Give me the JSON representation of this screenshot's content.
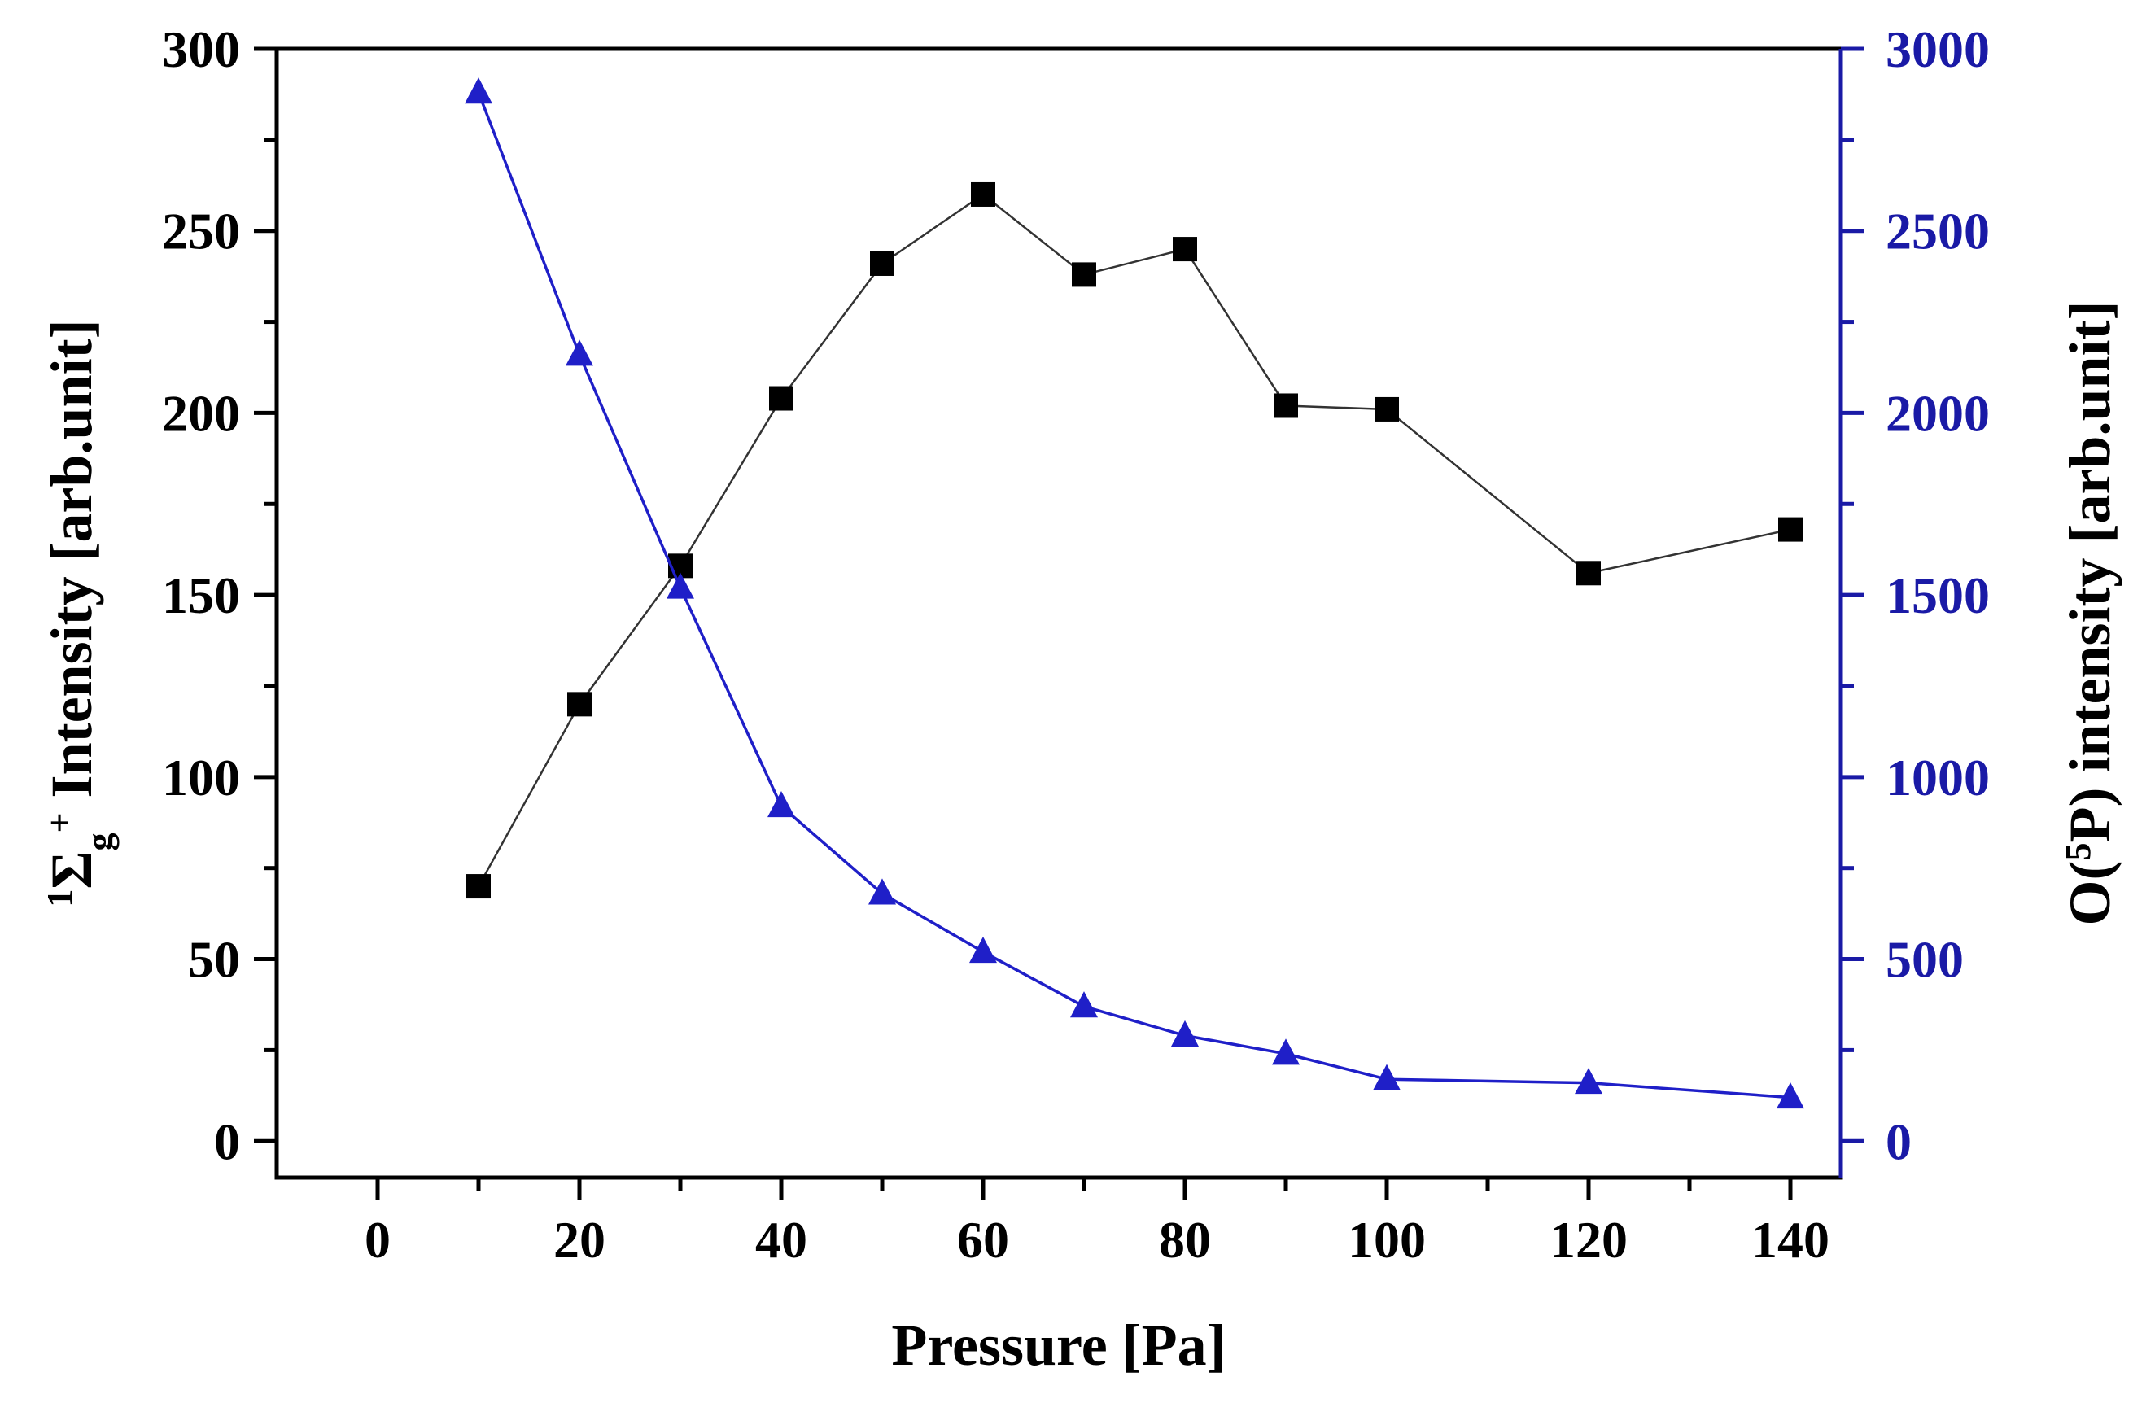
{
  "chart_data": {
    "type": "line",
    "title": "",
    "xlabel": "Pressure [Pa]",
    "ylabel_left": {
      "prefix_superscript": "1",
      "symbol": "Σ",
      "subscript": "g",
      "superscript": "+",
      "text": " Intensity [arb.unit]"
    },
    "ylabel_right": {
      "prefix": "O(",
      "superscript": "5",
      "text": "P) intensity [arb.unit]"
    },
    "xlim": [
      -10,
      145
    ],
    "ylim_left": [
      -10,
      300
    ],
    "ylim_right": [
      -100,
      3000
    ],
    "x_ticks": [
      "0",
      "20",
      "40",
      "60",
      "80",
      "100",
      "120",
      "140"
    ],
    "y_left_ticks": [
      "0",
      "50",
      "100",
      "150",
      "200",
      "250",
      "300"
    ],
    "y_right_ticks": [
      "0",
      "500",
      "1000",
      "1500",
      "2000",
      "2500",
      "3000"
    ],
    "colors": {
      "left_axis": "#000000",
      "right_axis": "#1a1aa6",
      "series1": "#000000",
      "series2": "#1f1fc8"
    },
    "series": [
      {
        "name": "1Σg+ intensity",
        "axis": "left",
        "marker": "square",
        "x": [
          10,
          20,
          30,
          40,
          50,
          60,
          70,
          80,
          90,
          100,
          120,
          140
        ],
        "values": [
          70,
          120,
          158,
          204,
          241,
          260,
          238,
          245,
          202,
          201,
          156,
          168
        ]
      },
      {
        "name": "O(5P) intensity",
        "axis": "right",
        "marker": "triangle",
        "x": [
          10,
          20,
          30,
          40,
          50,
          60,
          70,
          80,
          90,
          100,
          120,
          140
        ],
        "values": [
          2880,
          2160,
          1520,
          920,
          680,
          520,
          370,
          290,
          240,
          170,
          160,
          120
        ]
      }
    ]
  }
}
